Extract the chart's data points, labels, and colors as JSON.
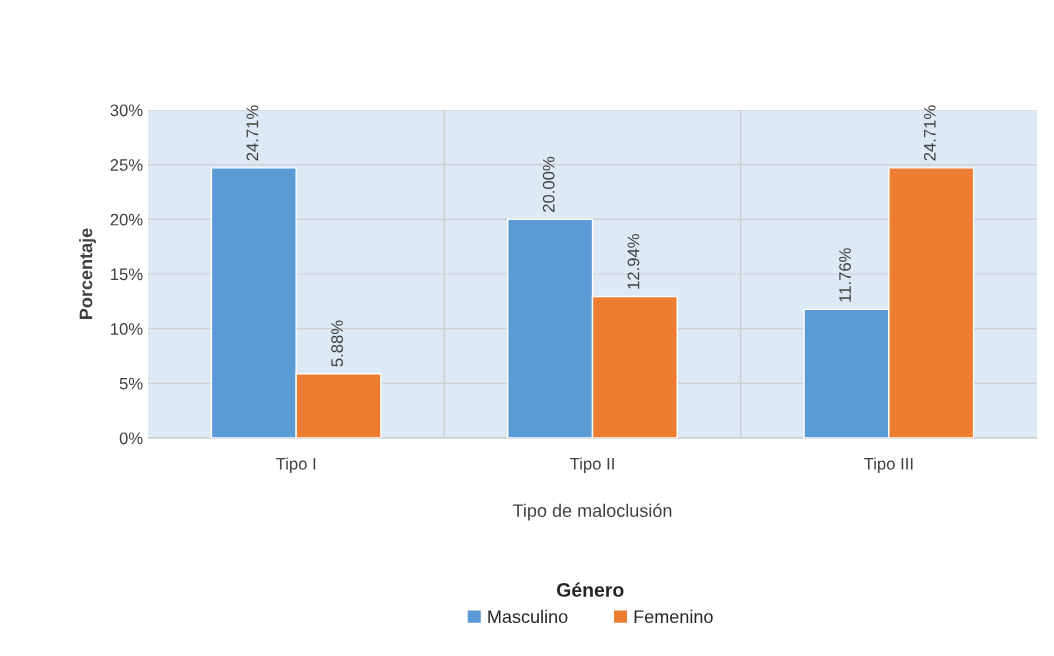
{
  "chart_data": {
    "type": "bar",
    "xlabel": "Tipo de maloclusión",
    "ylabel": "Porcentaje",
    "legend_title": "Género",
    "categories": [
      "Tipo I",
      "Tipo II",
      "Tipo III"
    ],
    "series": [
      {
        "name": "Masculino",
        "color": "#5b9bd5",
        "values": [
          24.71,
          20.0,
          11.76
        ],
        "value_labels": [
          "24.71%",
          "20.00%",
          "11.76%"
        ]
      },
      {
        "name": "Femenino",
        "color": "#ed7d31",
        "values": [
          5.88,
          12.94,
          24.71
        ],
        "value_labels": [
          "5.88%",
          "12.94%",
          "24.71%"
        ]
      }
    ],
    "ylim": [
      0,
      30
    ],
    "yticks": [
      {
        "value": 0,
        "label": "0%"
      },
      {
        "value": 5,
        "label": "5%"
      },
      {
        "value": 10,
        "label": "10%"
      },
      {
        "value": 15,
        "label": "15%"
      },
      {
        "value": 20,
        "label": "20%"
      },
      {
        "value": 25,
        "label": "25%"
      },
      {
        "value": 30,
        "label": "30%"
      }
    ],
    "grid": true,
    "legend": "bottom"
  }
}
